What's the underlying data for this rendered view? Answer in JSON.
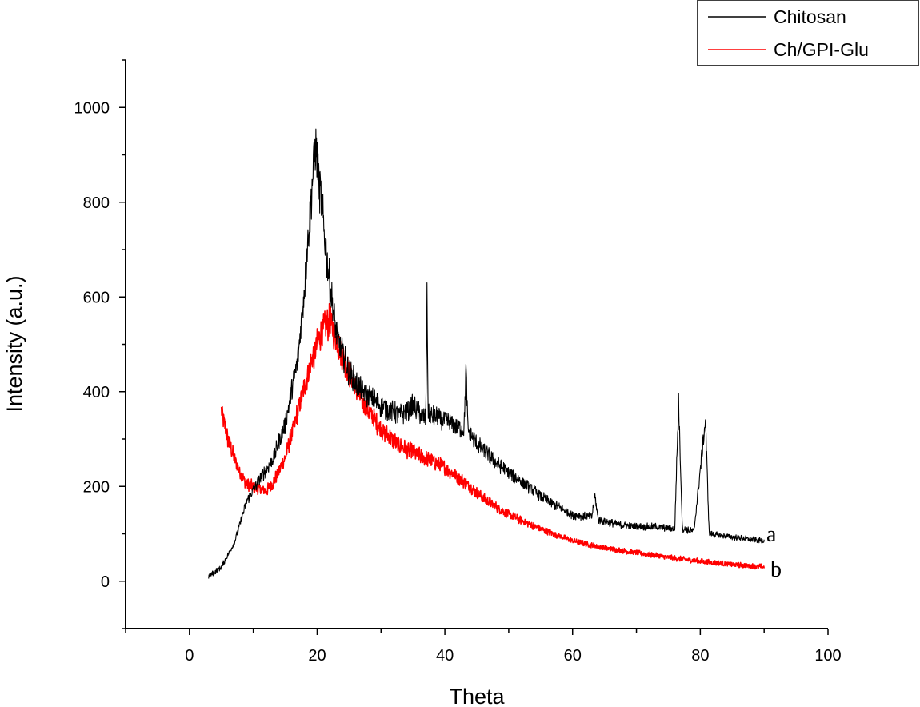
{
  "chart_data": {
    "type": "line",
    "title": "",
    "xlabel": "Theta",
    "ylabel": "Intensity (a.u.)",
    "xlim": [
      -10,
      100
    ],
    "ylim": [
      -100,
      1100
    ],
    "xticks": [
      0,
      20,
      40,
      60,
      80,
      100
    ],
    "yticks": [
      0,
      200,
      400,
      600,
      800,
      1000
    ],
    "legend_position": "top-right",
    "series": [
      {
        "name": "Chitosan",
        "curve_label": "a",
        "color": "#000000",
        "x": [
          3,
          5,
          7,
          9,
          11,
          13,
          15,
          17,
          18,
          19,
          19.7,
          20.5,
          21.5,
          23,
          25,
          27,
          30,
          33,
          35,
          37,
          37.2,
          37.4,
          40,
          43,
          43.3,
          43.6,
          45,
          48,
          52,
          56,
          60,
          63,
          63.5,
          64,
          67,
          70,
          73,
          76,
          76.6,
          77.2,
          79,
          80.8,
          81.4,
          84,
          87,
          90
        ],
        "y": [
          10,
          30,
          80,
          170,
          215,
          255,
          330,
          470,
          620,
          800,
          920,
          820,
          680,
          520,
          440,
          400,
          370,
          350,
          370,
          340,
          590,
          350,
          340,
          320,
          450,
          320,
          290,
          250,
          210,
          170,
          140,
          135,
          180,
          130,
          120,
          115,
          115,
          110,
          380,
          110,
          105,
          340,
          100,
          95,
          90,
          85
        ]
      },
      {
        "name": "Ch/GPI-Glu",
        "curve_label": "b",
        "color": "#ff0000",
        "x": [
          5,
          6,
          7,
          8,
          9,
          10,
          11,
          12,
          13,
          15,
          17,
          19,
          20.5,
          22,
          23,
          25,
          27,
          30,
          33,
          36,
          40,
          43,
          46,
          50,
          55,
          60,
          65,
          70,
          75,
          80,
          85,
          90
        ],
        "y": [
          360,
          300,
          260,
          225,
          205,
          200,
          195,
          190,
          205,
          260,
          360,
          460,
          520,
          550,
          510,
          440,
          380,
          320,
          285,
          265,
          240,
          210,
          175,
          140,
          110,
          85,
          70,
          60,
          50,
          42,
          35,
          30
        ]
      }
    ]
  }
}
